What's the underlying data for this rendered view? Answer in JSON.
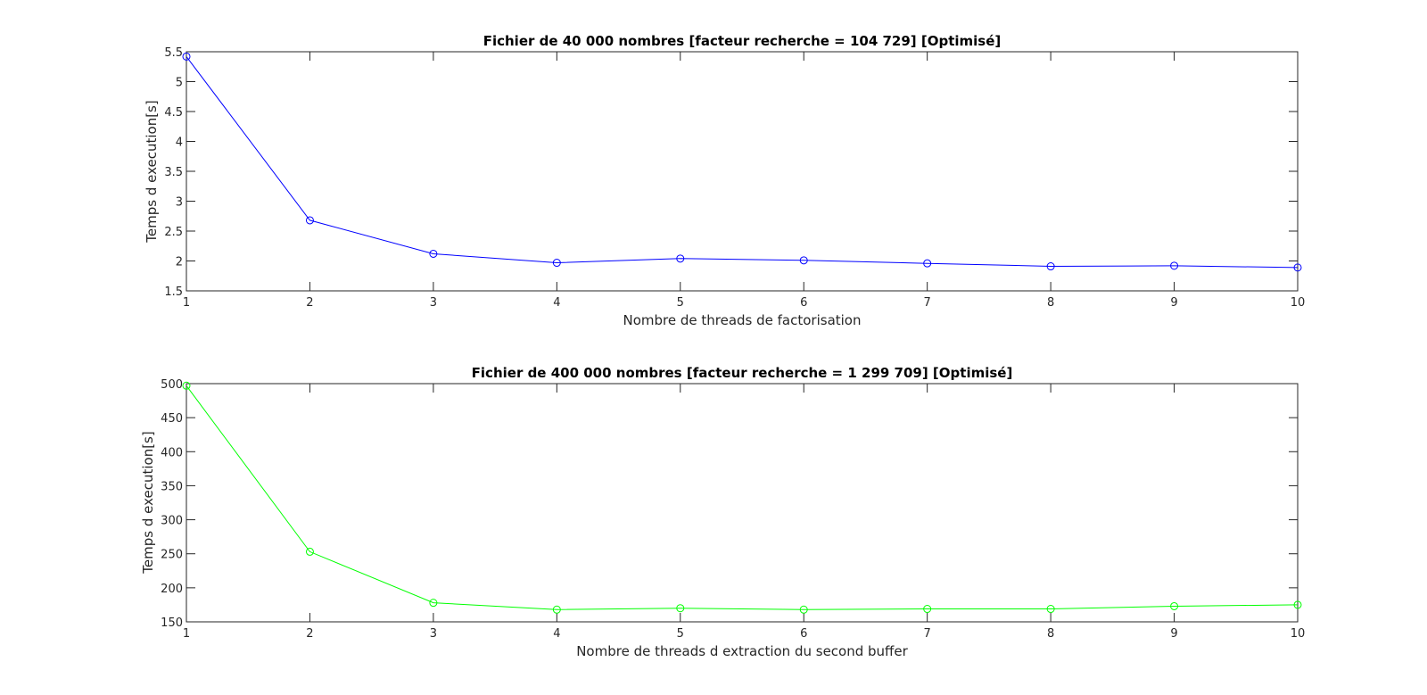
{
  "chart_data": [
    {
      "type": "line",
      "title": "Fichier de 40 000 nombres [facteur recherche = 104 729] [Optimisé]",
      "xlabel": "Nombre de threads de factorisation",
      "ylabel": "Temps d execution[s]",
      "xlim": [
        1,
        10
      ],
      "ylim": [
        1.5,
        5.5
      ],
      "xticks": [
        "1",
        "2",
        "3",
        "4",
        "5",
        "6",
        "7",
        "8",
        "9",
        "10"
      ],
      "yticks": [
        "1.5",
        "2",
        "2.5",
        "3",
        "3.5",
        "4",
        "4.5",
        "5",
        "5.5"
      ],
      "grid": false,
      "color": "#0000ff",
      "marker": "circle",
      "x": [
        1,
        2,
        3,
        4,
        5,
        6,
        7,
        8,
        9,
        10
      ],
      "y": [
        5.42,
        2.68,
        2.12,
        1.97,
        2.04,
        2.01,
        1.96,
        1.91,
        1.92,
        1.89
      ]
    },
    {
      "type": "line",
      "title": "Fichier de 400 000 nombres [facteur recherche = 1 299 709] [Optimisé]",
      "xlabel": "Nombre de threads d extraction du second buffer",
      "ylabel": "Temps d execution[s]",
      "xlim": [
        1,
        10
      ],
      "ylim": [
        150,
        500
      ],
      "xticks": [
        "1",
        "2",
        "3",
        "4",
        "5",
        "6",
        "7",
        "8",
        "9",
        "10"
      ],
      "yticks": [
        "150",
        "200",
        "250",
        "300",
        "350",
        "400",
        "450",
        "500"
      ],
      "grid": false,
      "color": "#00ff00",
      "marker": "circle",
      "x": [
        1,
        2,
        3,
        4,
        5,
        6,
        7,
        8,
        9,
        10
      ],
      "y": [
        497,
        253,
        178,
        168,
        170,
        168,
        169,
        169,
        173,
        175
      ]
    }
  ]
}
